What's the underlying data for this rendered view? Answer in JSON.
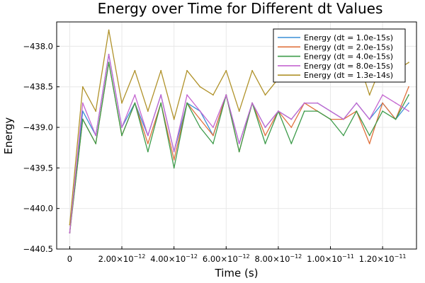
{
  "chart_data": {
    "type": "line",
    "title": "Energy over Time for Different dt Values",
    "xlabel": "Time (s)",
    "ylabel": "Energy",
    "xlim": [
      -5e-13,
      1.33e-11
    ],
    "ylim": [
      -440.5,
      -437.7
    ],
    "grid": true,
    "legend_position": "top-right",
    "x_ticks": [
      {
        "value": 0,
        "mantissa": "0",
        "exp": ""
      },
      {
        "value": 2e-12,
        "mantissa": "2.00×10",
        "exp": "−12"
      },
      {
        "value": 4e-12,
        "mantissa": "4.00×10",
        "exp": "−12"
      },
      {
        "value": 6e-12,
        "mantissa": "6.00×10",
        "exp": "−12"
      },
      {
        "value": 8e-12,
        "mantissa": "8.00×10",
        "exp": "−12"
      },
      {
        "value": 1e-11,
        "mantissa": "1.00×10",
        "exp": "−11"
      },
      {
        "value": 1.2e-11,
        "mantissa": "1.20×10",
        "exp": "−11"
      }
    ],
    "y_ticks": [
      {
        "value": -440.5,
        "label": "−440.5"
      },
      {
        "value": -440.0,
        "label": "−440.0"
      },
      {
        "value": -439.5,
        "label": "−439.5"
      },
      {
        "value": -439.0,
        "label": "−439.0"
      },
      {
        "value": -438.5,
        "label": "−438.5"
      },
      {
        "value": -438.0,
        "label": "−438.0"
      }
    ],
    "x": [
      0,
      5e-13,
      1e-12,
      1.5e-12,
      2e-12,
      2.5e-12,
      3e-12,
      3.5e-12,
      4e-12,
      4.5e-12,
      5e-12,
      5.5e-12,
      6e-12,
      6.5e-12,
      7e-12,
      7.5e-12,
      8e-12,
      8.5e-12,
      9e-12,
      9.5e-12,
      1e-11,
      1.05e-11,
      1.1e-11,
      1.15e-11,
      1.2e-11,
      1.25e-11,
      1.3e-11
    ],
    "series": [
      {
        "name": "Energy (dt = 1.0e-15s)",
        "color": "#3a8fd6",
        "values": [
          -440.3,
          -438.8,
          -439.1,
          -438.1,
          -439.0,
          -438.7,
          -439.1,
          -438.6,
          -439.3,
          -438.7,
          -438.8,
          -439.1,
          -438.6,
          -439.2,
          -438.7,
          -439.0,
          -438.8,
          -438.9,
          -438.7,
          -438.7,
          -438.8,
          -438.9,
          -438.7,
          -438.9,
          -438.7,
          -438.9,
          -438.7
        ]
      },
      {
        "name": "Energy (dt = 2.0e-15s)",
        "color": "#e0713c",
        "values": [
          -440.3,
          -438.9,
          -439.2,
          -438.2,
          -439.1,
          -438.7,
          -439.2,
          -438.7,
          -439.4,
          -438.7,
          -438.9,
          -439.1,
          -438.6,
          -439.3,
          -438.7,
          -439.1,
          -438.8,
          -439.0,
          -438.7,
          -438.8,
          -438.9,
          -438.9,
          -438.8,
          -439.2,
          -438.7,
          -438.9,
          -438.5
        ]
      },
      {
        "name": "Energy (dt = 4.0e-15s)",
        "color": "#3d9b4a",
        "values": [
          -440.3,
          -438.9,
          -439.2,
          -438.2,
          -439.1,
          -438.7,
          -439.3,
          -438.7,
          -439.5,
          -438.7,
          -439.0,
          -439.2,
          -438.6,
          -439.3,
          -438.7,
          -439.2,
          -438.8,
          -439.2,
          -438.8,
          -438.8,
          -438.9,
          -439.1,
          -438.8,
          -439.1,
          -438.8,
          -438.9,
          -438.6
        ]
      },
      {
        "name": "Energy (dt = 8.0e-15s)",
        "color": "#c466d0",
        "values": [
          -440.3,
          -438.7,
          -439.1,
          -438.1,
          -439.0,
          -438.6,
          -439.1,
          -438.6,
          -439.3,
          -438.6,
          -438.8,
          -439.0,
          -438.6,
          -439.2,
          -438.7,
          -439.0,
          -438.8,
          -438.9,
          -438.7,
          -438.7,
          -438.8,
          -438.9,
          -438.7,
          -438.9,
          -438.6,
          -438.7,
          -438.8
        ]
      },
      {
        "name": "Energy (dt = 1.3e-14s)",
        "color": "#b0922a",
        "values": [
          -440.2,
          -438.5,
          -438.8,
          -437.8,
          -438.7,
          -438.3,
          -438.8,
          -438.3,
          -438.9,
          -438.3,
          -438.5,
          -438.6,
          -438.3,
          -438.8,
          -438.3,
          -438.6,
          -438.4,
          -438.1,
          -438.3,
          -438.4,
          -438.3,
          -438.2,
          -438.1,
          -438.6,
          -438.2,
          -438.3,
          -438.2
        ]
      }
    ]
  }
}
